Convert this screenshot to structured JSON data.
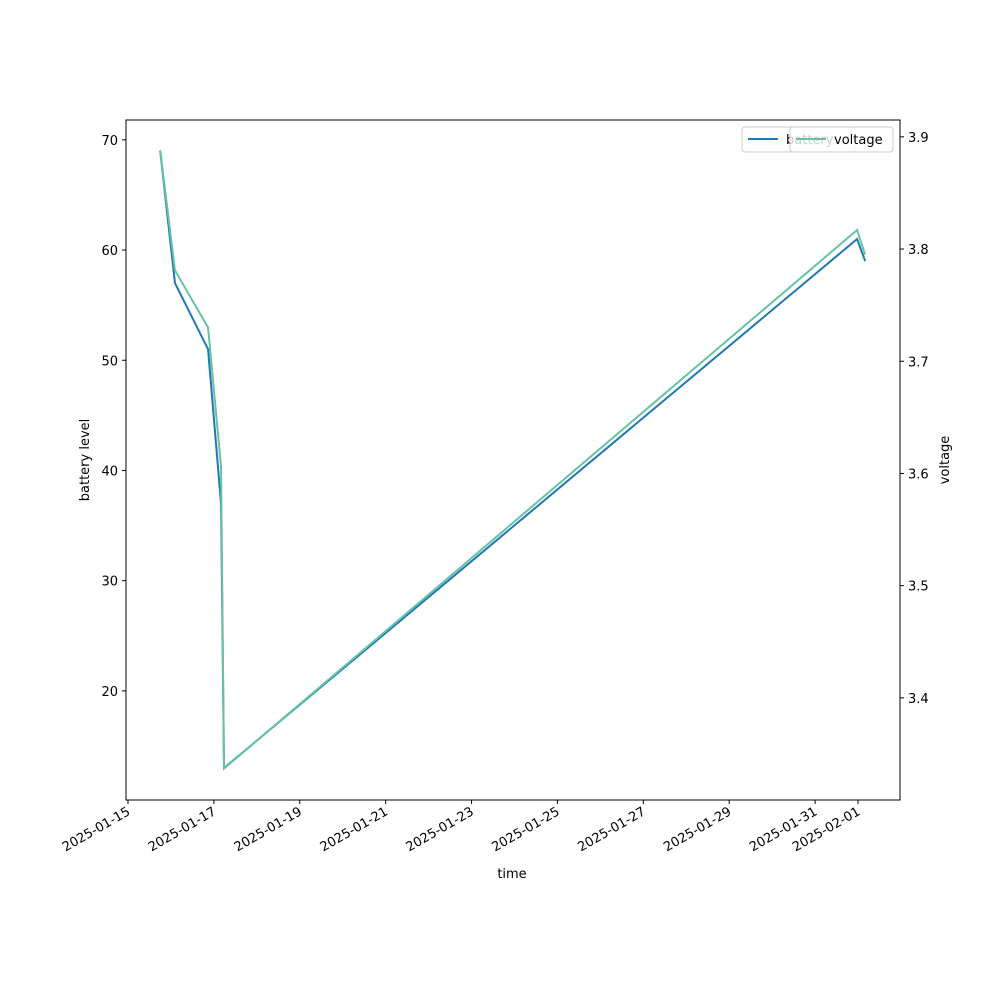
{
  "chart_data": {
    "type": "line",
    "x": [
      "2025-01-15T18:00",
      "2025-01-16T02:15",
      "2025-01-16T20:45",
      "2025-01-17T04:00",
      "2025-01-17T05:40",
      "2025-01-31T23:30",
      "2025-02-01T04:00"
    ],
    "series": [
      {
        "name": "battery",
        "color": "#1f77b4",
        "values": [
          69,
          57,
          51,
          37,
          13,
          61,
          59
        ]
      },
      {
        "name": "voltage",
        "color": "#66c2a5",
        "axis": "y2",
        "values": [
          3.888,
          3.781,
          3.73,
          3.606,
          3.337,
          3.817,
          3.795
        ]
      }
    ],
    "xlabel": "time",
    "ylabel": "battery level",
    "y2label": "voltage",
    "xlim": [
      "2025-01-14T22:53",
      "2025-02-01T23:28"
    ],
    "xticks": [
      "2025-01-15",
      "2025-01-17",
      "2025-01-19",
      "2025-01-21",
      "2025-01-23",
      "2025-01-25",
      "2025-01-27",
      "2025-01-29",
      "2025-01-31",
      "2025-02-01"
    ],
    "ylim": [
      10.1,
      71.8
    ],
    "yticks": [
      20,
      30,
      40,
      50,
      60,
      70
    ],
    "y2lim": [
      3.309,
      3.915
    ],
    "y2ticks": [
      3.4,
      3.5,
      3.6,
      3.7,
      3.8,
      3.9
    ],
    "legend": "upper right"
  }
}
